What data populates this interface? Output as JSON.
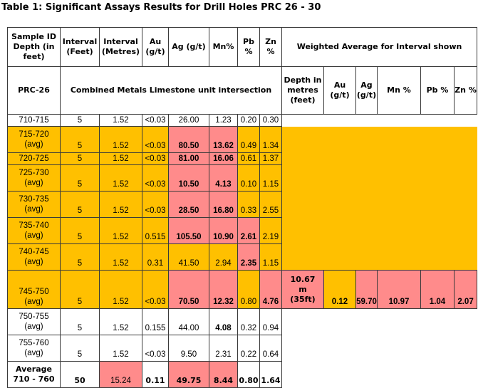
{
  "title": "Table 1: Significant Assays Results for Drill Holes PRC 26 - 30",
  "colors": {
    "orange": "#ffc000",
    "pink": "#ff8b8b",
    "white": "#ffffff",
    "border": "#3a3a3a"
  },
  "header": {
    "sample_id": "Sample ID Depth (in feet)",
    "interval_feet": "Interval (Feet)",
    "interval_metres": "Interval (Metres)",
    "au": "Au (g/t)",
    "ag": "Ag (g/t)",
    "mn": "Mn%",
    "pb": "Pb %",
    "zn": "Zn %",
    "weighted": "Weighted Average for Interval shown"
  },
  "subheader": {
    "hole": "PRC-26",
    "unit": "Combined Metals Limestone unit intersection",
    "depth": "Depth in metres (feet)",
    "au": "Au (g/t)",
    "ag": "Ag (g/t)",
    "mn": "Mn %",
    "pb": "Pb %",
    "zn": "Zn %"
  },
  "rows": [
    {
      "id": "710-715",
      "avg": "",
      "ft": "5",
      "m": "1.52",
      "au": "<0.03",
      "ag": "26.00",
      "mn": "1.23",
      "pb": "0.20",
      "zn": "0.30"
    },
    {
      "id": "715-720",
      "avg": "(avg)",
      "ft": "5",
      "m": "1.52",
      "au": "<0.03",
      "ag": "80.50",
      "mn": "13.62",
      "pb": "0.49",
      "zn": "1.34"
    },
    {
      "id": "720-725",
      "avg": "",
      "ft": "5",
      "m": "1.52",
      "au": "<0.03",
      "ag": "81.00",
      "mn": "16.06",
      "pb": "0.61",
      "zn": "1.37"
    },
    {
      "id": "725-730",
      "avg": "(avg)",
      "ft": "5",
      "m": "1.52",
      "au": "<0.03",
      "ag": "10.50",
      "mn": "4.13",
      "pb": "0.10",
      "zn": "1.15"
    },
    {
      "id": "730-735",
      "avg": "(avg)",
      "ft": "5",
      "m": "1.52",
      "au": "<0.03",
      "ag": "28.50",
      "mn": "16.80",
      "pb": "0.33",
      "zn": "2.55"
    },
    {
      "id": "735-740",
      "avg": "(avg)",
      "ft": "5",
      "m": "1.52",
      "au": "0.515",
      "ag": "105.50",
      "mn": "10.90",
      "pb": "2.61",
      "zn": "2.19"
    },
    {
      "id": "740-745",
      "avg": "(avg)",
      "ft": "5",
      "m": "1.52",
      "au": "0.31",
      "ag": "41.50",
      "mn": "2.94",
      "pb": "2.35",
      "zn": "1.15"
    },
    {
      "id": "745-750",
      "avg": "(avg)",
      "ft": "5",
      "m": "1.52",
      "au": "<0.03",
      "ag": "70.50",
      "mn": "12.32",
      "pb": "0.80",
      "zn": "4.76"
    },
    {
      "id": "750-755",
      "avg": "(avg)",
      "ft": "5",
      "m": "1.52",
      "au": "0.155",
      "ag": "44.00",
      "mn": "4.08",
      "pb": "0.32",
      "zn": "0.94"
    },
    {
      "id": "755-760",
      "avg": "(avg)",
      "ft": "5",
      "m": "1.52",
      "au": "<0.03",
      "ag": "9.50",
      "mn": "2.31",
      "pb": "0.22",
      "zn": "0.64"
    }
  ],
  "weighted": {
    "depth_line1": "10.67",
    "depth_line2": "m",
    "depth_line3": "(35ft)",
    "au": "0.12",
    "ag": "59.70",
    "mn": "10.97",
    "pb": "1.04",
    "zn": "2.07"
  },
  "average": {
    "label": "Average",
    "range": "710 - 760",
    "ft": "50",
    "m": "15.24",
    "au": "0.11",
    "ag": "49.75",
    "mn": "8.44",
    "pb": "0.80",
    "zn": "1.64"
  }
}
